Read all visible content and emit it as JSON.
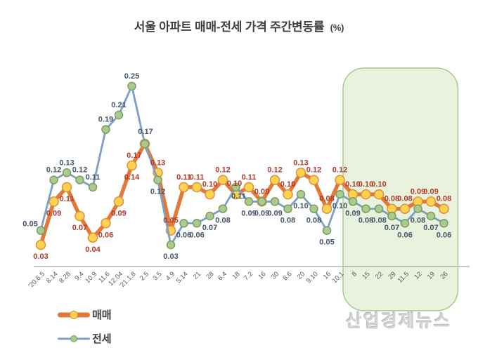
{
  "title": {
    "main": "서울 아파트 매매-전세 가격 주간변동률",
    "suffix": "(%)"
  },
  "watermark": "산업경제뉴스",
  "legend": {
    "items": [
      {
        "label": "매매"
      },
      {
        "label": "전세"
      }
    ]
  },
  "colors": {
    "title": "#404040",
    "legend_label": "#3f3f3f",
    "axis_line": "#a6a6a6",
    "tick_label": "#595959",
    "watermark": "#d2d2d2"
  },
  "chart_data": {
    "type": "line",
    "title": "서울 아파트 매매-전세 가격 주간변동률 (%)",
    "xlabel": "",
    "ylabel": "",
    "ylim": [
      0,
      0.28
    ],
    "grid": false,
    "legend_position": "bottom-left",
    "categories": [
      "'20.6.5",
      "8.14",
      "8.28",
      "9.4",
      "10.9",
      "11.6",
      "12.04",
      "'21.1.8",
      "2.5",
      "3.5",
      "4.9",
      "5.14",
      "21",
      "28",
      "6.4",
      "18",
      "7.2",
      "16",
      "30",
      "8.6",
      "20",
      "9.10",
      "16",
      "10.1",
      "8",
      "15",
      "22",
      "29",
      "11.5",
      "12",
      "19",
      "26"
    ],
    "series": [
      {
        "name": "매매",
        "values": [
          0.03,
          0.09,
          0.11,
          0.07,
          0.04,
          0.06,
          0.09,
          0.14,
          0.17,
          0.13,
          0.05,
          0.11,
          0.11,
          0.1,
          0.12,
          0.1,
          0.11,
          0.09,
          0.12,
          0.1,
          0.13,
          0.12,
          0.08,
          0.12,
          0.1,
          0.1,
          0.1,
          0.08,
          0.08,
          0.09,
          0.09,
          0.08
        ],
        "line_color": "#e2793b",
        "line_width": 5.5,
        "marker_fill": "#fcd24f",
        "marker_stroke": "#dd8f3f",
        "marker_radius": 6.5,
        "label_color": "#b0382a"
      },
      {
        "name": "전세",
        "values": [
          0.05,
          0.12,
          0.13,
          0.12,
          0.11,
          0.19,
          0.21,
          0.25,
          0.17,
          0.12,
          0.03,
          0.06,
          0.06,
          0.07,
          0.08,
          0.11,
          0.09,
          0.09,
          0.09,
          0.08,
          0.1,
          0.08,
          0.05,
          0.1,
          0.09,
          0.08,
          0.08,
          0.07,
          0.06,
          0.08,
          0.07,
          0.06
        ],
        "line_color": "#7b9fc7",
        "line_width": 2.8,
        "marker_fill": "#a9cb8e",
        "marker_stroke": "#7d9c61",
        "marker_radius": 5.5,
        "label_color": "#44546a"
      }
    ],
    "highlight_region": {
      "start_category_index": 24,
      "end_category_index": 31,
      "fill": "#e8f2dd",
      "stroke": "#a6c48a"
    }
  }
}
